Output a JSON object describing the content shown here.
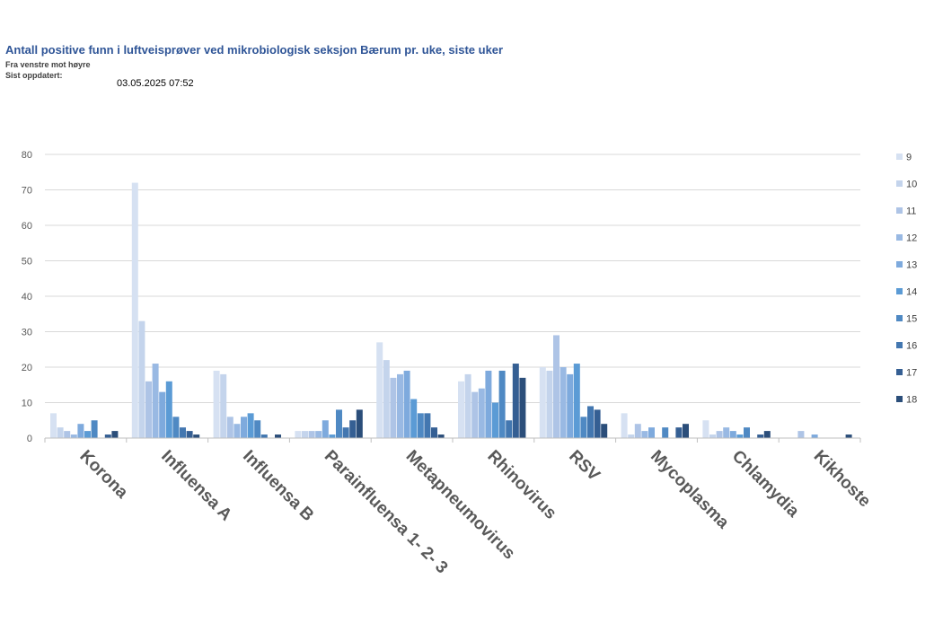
{
  "header": {
    "title": "Antall positive funn i luftveisprøver ved mikrobiologisk seksjon Bærum pr. uke, siste uker",
    "subtitle": "Fra venstre mot høyre",
    "updated_label": "Sist oppdatert:",
    "updated_value": "03.05.2025 07:52"
  },
  "chart_data": {
    "type": "bar",
    "title": "",
    "xlabel": "",
    "ylabel": "",
    "ylim": [
      0,
      80
    ],
    "yticks": [
      0,
      10,
      20,
      30,
      40,
      50,
      60,
      70,
      80
    ],
    "grid": true,
    "legend_position": "right",
    "categories": [
      "Korona",
      "Influensa A",
      "Influensa B",
      "Parainfluensa 1- 2- 3",
      "Metapneumovirus",
      "Rhinovirus",
      "RSV",
      "Mycoplasma",
      "Chlamydia",
      "Kikhoste"
    ],
    "series": [
      {
        "name": "9",
        "color": "#d6e1f2",
        "values": [
          7,
          72,
          19,
          2,
          27,
          16,
          20,
          7,
          5,
          0
        ]
      },
      {
        "name": "10",
        "color": "#c4d4ec",
        "values": [
          3,
          33,
          18,
          2,
          22,
          18,
          19,
          1,
          1,
          0
        ]
      },
      {
        "name": "11",
        "color": "#aec4e6",
        "values": [
          2,
          16,
          6,
          2,
          17,
          13,
          29,
          4,
          2,
          2
        ]
      },
      {
        "name": "12",
        "color": "#99b9e3",
        "values": [
          1,
          21,
          4,
          2,
          18,
          14,
          20,
          2,
          3,
          0
        ]
      },
      {
        "name": "13",
        "color": "#7eaadd",
        "values": [
          4,
          13,
          6,
          5,
          19,
          19,
          18,
          3,
          2,
          1
        ]
      },
      {
        "name": "14",
        "color": "#5b9bd5",
        "values": [
          2,
          16,
          7,
          1,
          11,
          10,
          21,
          0,
          1,
          0
        ]
      },
      {
        "name": "15",
        "color": "#4f89c3",
        "values": [
          5,
          6,
          5,
          8,
          7,
          19,
          6,
          3,
          3,
          0
        ]
      },
      {
        "name": "16",
        "color": "#4377b0",
        "values": [
          0,
          3,
          1,
          3,
          7,
          5,
          9,
          0,
          0,
          0
        ]
      },
      {
        "name": "17",
        "color": "#355f93",
        "values": [
          1,
          2,
          0,
          5,
          3,
          21,
          8,
          3,
          1,
          0
        ]
      },
      {
        "name": "18",
        "color": "#2b4e7a",
        "values": [
          2,
          1,
          1,
          8,
          1,
          17,
          4,
          4,
          2,
          1
        ]
      }
    ]
  }
}
